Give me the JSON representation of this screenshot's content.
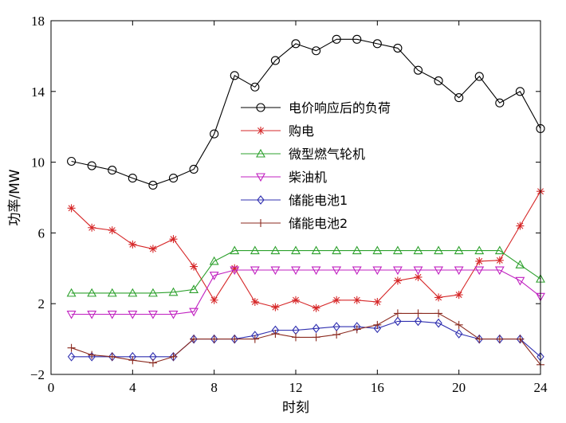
{
  "chart_data": {
    "type": "line",
    "xlabel": "时刻",
    "ylabel": "功率/MW",
    "xlim": [
      0,
      24
    ],
    "ylim": [
      -2,
      18
    ],
    "xticks": [
      0,
      4,
      8,
      12,
      16,
      20,
      24
    ],
    "yticks": [
      -2,
      2,
      6,
      10,
      14,
      18
    ],
    "grid": false,
    "legend_position": "center-right",
    "x": [
      1,
      2,
      3,
      4,
      5,
      6,
      7,
      8,
      9,
      10,
      11,
      12,
      13,
      14,
      15,
      16,
      17,
      18,
      19,
      20,
      21,
      22,
      23,
      24
    ],
    "series": [
      {
        "name": "电价响应后的负荷",
        "color": "#000000",
        "marker": "circle",
        "values": [
          10.05,
          9.8,
          9.55,
          9.1,
          8.7,
          9.1,
          9.6,
          11.6,
          14.9,
          14.25,
          15.75,
          16.7,
          16.3,
          16.95,
          16.95,
          16.7,
          16.45,
          15.2,
          14.6,
          13.65,
          14.85,
          13.35,
          14.0,
          11.9
        ]
      },
      {
        "name": "购电",
        "color": "#d62728",
        "marker": "star",
        "values": [
          7.4,
          6.3,
          6.15,
          5.35,
          5.1,
          5.65,
          4.1,
          2.2,
          4.0,
          2.1,
          1.8,
          2.2,
          1.75,
          2.2,
          2.2,
          2.1,
          3.3,
          3.5,
          2.35,
          2.5,
          4.4,
          4.45,
          6.4,
          8.35
        ]
      },
      {
        "name": "微型燃气轮机",
        "color": "#2ca02c",
        "marker": "triangle-up",
        "values": [
          2.6,
          2.6,
          2.6,
          2.6,
          2.6,
          2.65,
          2.8,
          4.4,
          5.0,
          5.0,
          5.0,
          5.0,
          5.0,
          5.0,
          5.0,
          5.0,
          5.0,
          5.0,
          5.0,
          5.0,
          5.0,
          5.0,
          4.2,
          3.4
        ]
      },
      {
        "name": "柴油机",
        "color": "#c020c0",
        "marker": "triangle-down",
        "values": [
          1.4,
          1.4,
          1.4,
          1.4,
          1.4,
          1.4,
          1.55,
          3.6,
          3.9,
          3.9,
          3.9,
          3.9,
          3.9,
          3.9,
          3.9,
          3.9,
          3.9,
          3.9,
          3.9,
          3.9,
          3.9,
          3.9,
          3.3,
          2.4
        ]
      },
      {
        "name": "储能电池1",
        "color": "#3030b0",
        "marker": "diamond",
        "values": [
          -1.0,
          -1.0,
          -1.0,
          -1.0,
          -1.0,
          -1.0,
          0.0,
          0.0,
          0.0,
          0.2,
          0.5,
          0.5,
          0.6,
          0.7,
          0.7,
          0.6,
          1.0,
          1.0,
          0.9,
          0.3,
          0.0,
          0.0,
          0.0,
          -1.0
        ]
      },
      {
        "name": "储能电池2",
        "color": "#8b2a1f",
        "marker": "plus",
        "values": [
          -0.5,
          -0.9,
          -1.0,
          -1.2,
          -1.35,
          -1.0,
          0.0,
          0.0,
          0.0,
          0.0,
          0.3,
          0.1,
          0.1,
          0.25,
          0.55,
          0.8,
          1.45,
          1.45,
          1.45,
          0.8,
          0.0,
          0.0,
          0.0,
          -1.45
        ]
      }
    ]
  }
}
